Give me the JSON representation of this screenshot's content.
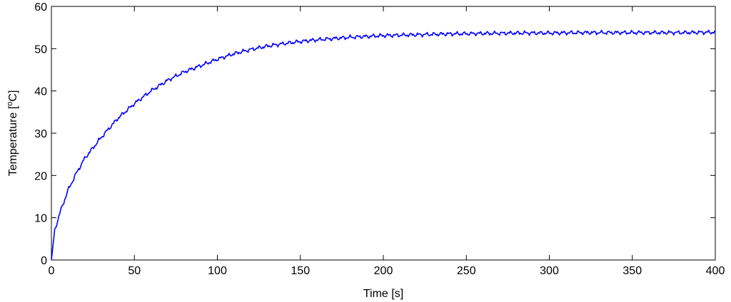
{
  "chart_data": {
    "type": "line",
    "xlabel": "Time [s]",
    "ylabel": "Temperature [",
    "ylabel_degree": "o",
    "ylabel_unit": "C]",
    "xlim": [
      0,
      400
    ],
    "ylim": [
      0,
      60
    ],
    "xticks": [
      "0",
      "50",
      "100",
      "150",
      "200",
      "250",
      "300",
      "350",
      "400"
    ],
    "yticks": [
      "0",
      "10",
      "20",
      "30",
      "40",
      "50",
      "60"
    ],
    "grid": false,
    "legend": "none",
    "line_color": "#0000ff",
    "series": [
      {
        "x": [
          0,
          2,
          5,
          10,
          15,
          20,
          25,
          30,
          40,
          50,
          60,
          70,
          80,
          90,
          100,
          110,
          120,
          130,
          140,
          150,
          160,
          170,
          180,
          190,
          200,
          220,
          240,
          260,
          280,
          300,
          320,
          340,
          360,
          380,
          400
        ],
        "values": [
          0,
          7,
          11,
          16.5,
          20.5,
          24,
          26.5,
          29,
          33.5,
          37,
          40,
          42.5,
          44.5,
          46,
          47.5,
          48.8,
          49.8,
          50.6,
          51.2,
          51.7,
          52.1,
          52.4,
          52.7,
          52.9,
          53.1,
          53.3,
          53.5,
          53.6,
          53.7,
          53.7,
          53.8,
          53.8,
          53.8,
          53.8,
          53.9
        ]
      }
    ]
  }
}
